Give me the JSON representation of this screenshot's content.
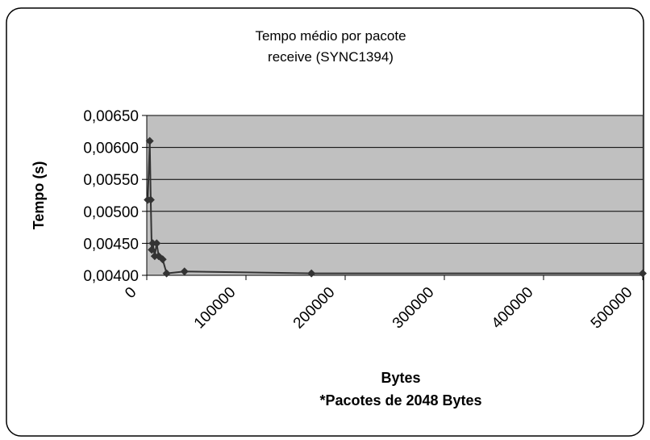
{
  "chart_data": {
    "type": "scatter-line",
    "title": [
      "Tempo médio por pacote",
      "receive (SYNC1394)"
    ],
    "x_label": [
      "Bytes",
      "*Pacotes de 2048 Bytes"
    ],
    "y_label": "Tempo (s)",
    "series": [
      {
        "color": "#333333",
        "x": [
          1000,
          3000,
          4000,
          5000,
          6000,
          8000,
          10000,
          12000,
          16000,
          20000,
          38000,
          166000,
          500000
        ],
        "values": [
          0.00518,
          0.0061,
          0.00518,
          0.0044,
          0.0045,
          0.0043,
          0.0045,
          0.0043,
          0.00425,
          0.00403,
          0.00406,
          0.00403,
          0.00403
        ]
      }
    ],
    "xlim": [
      0,
      500000
    ],
    "xticks": [
      0,
      100000,
      200000,
      300000,
      400000,
      500000
    ],
    "ylim": [
      0.004,
      0.0065
    ],
    "yticks": [
      {
        "value": 0.004,
        "label": "0,00400"
      },
      {
        "value": 0.0045,
        "label": "0,00450"
      },
      {
        "value": 0.005,
        "label": "0,00500"
      },
      {
        "value": 0.0055,
        "label": "0,00550"
      },
      {
        "value": 0.006,
        "label": "0,00600"
      },
      {
        "value": 0.0065,
        "label": "0,00650"
      }
    ],
    "grid": true,
    "plot_background": "#c0c0c0"
  }
}
